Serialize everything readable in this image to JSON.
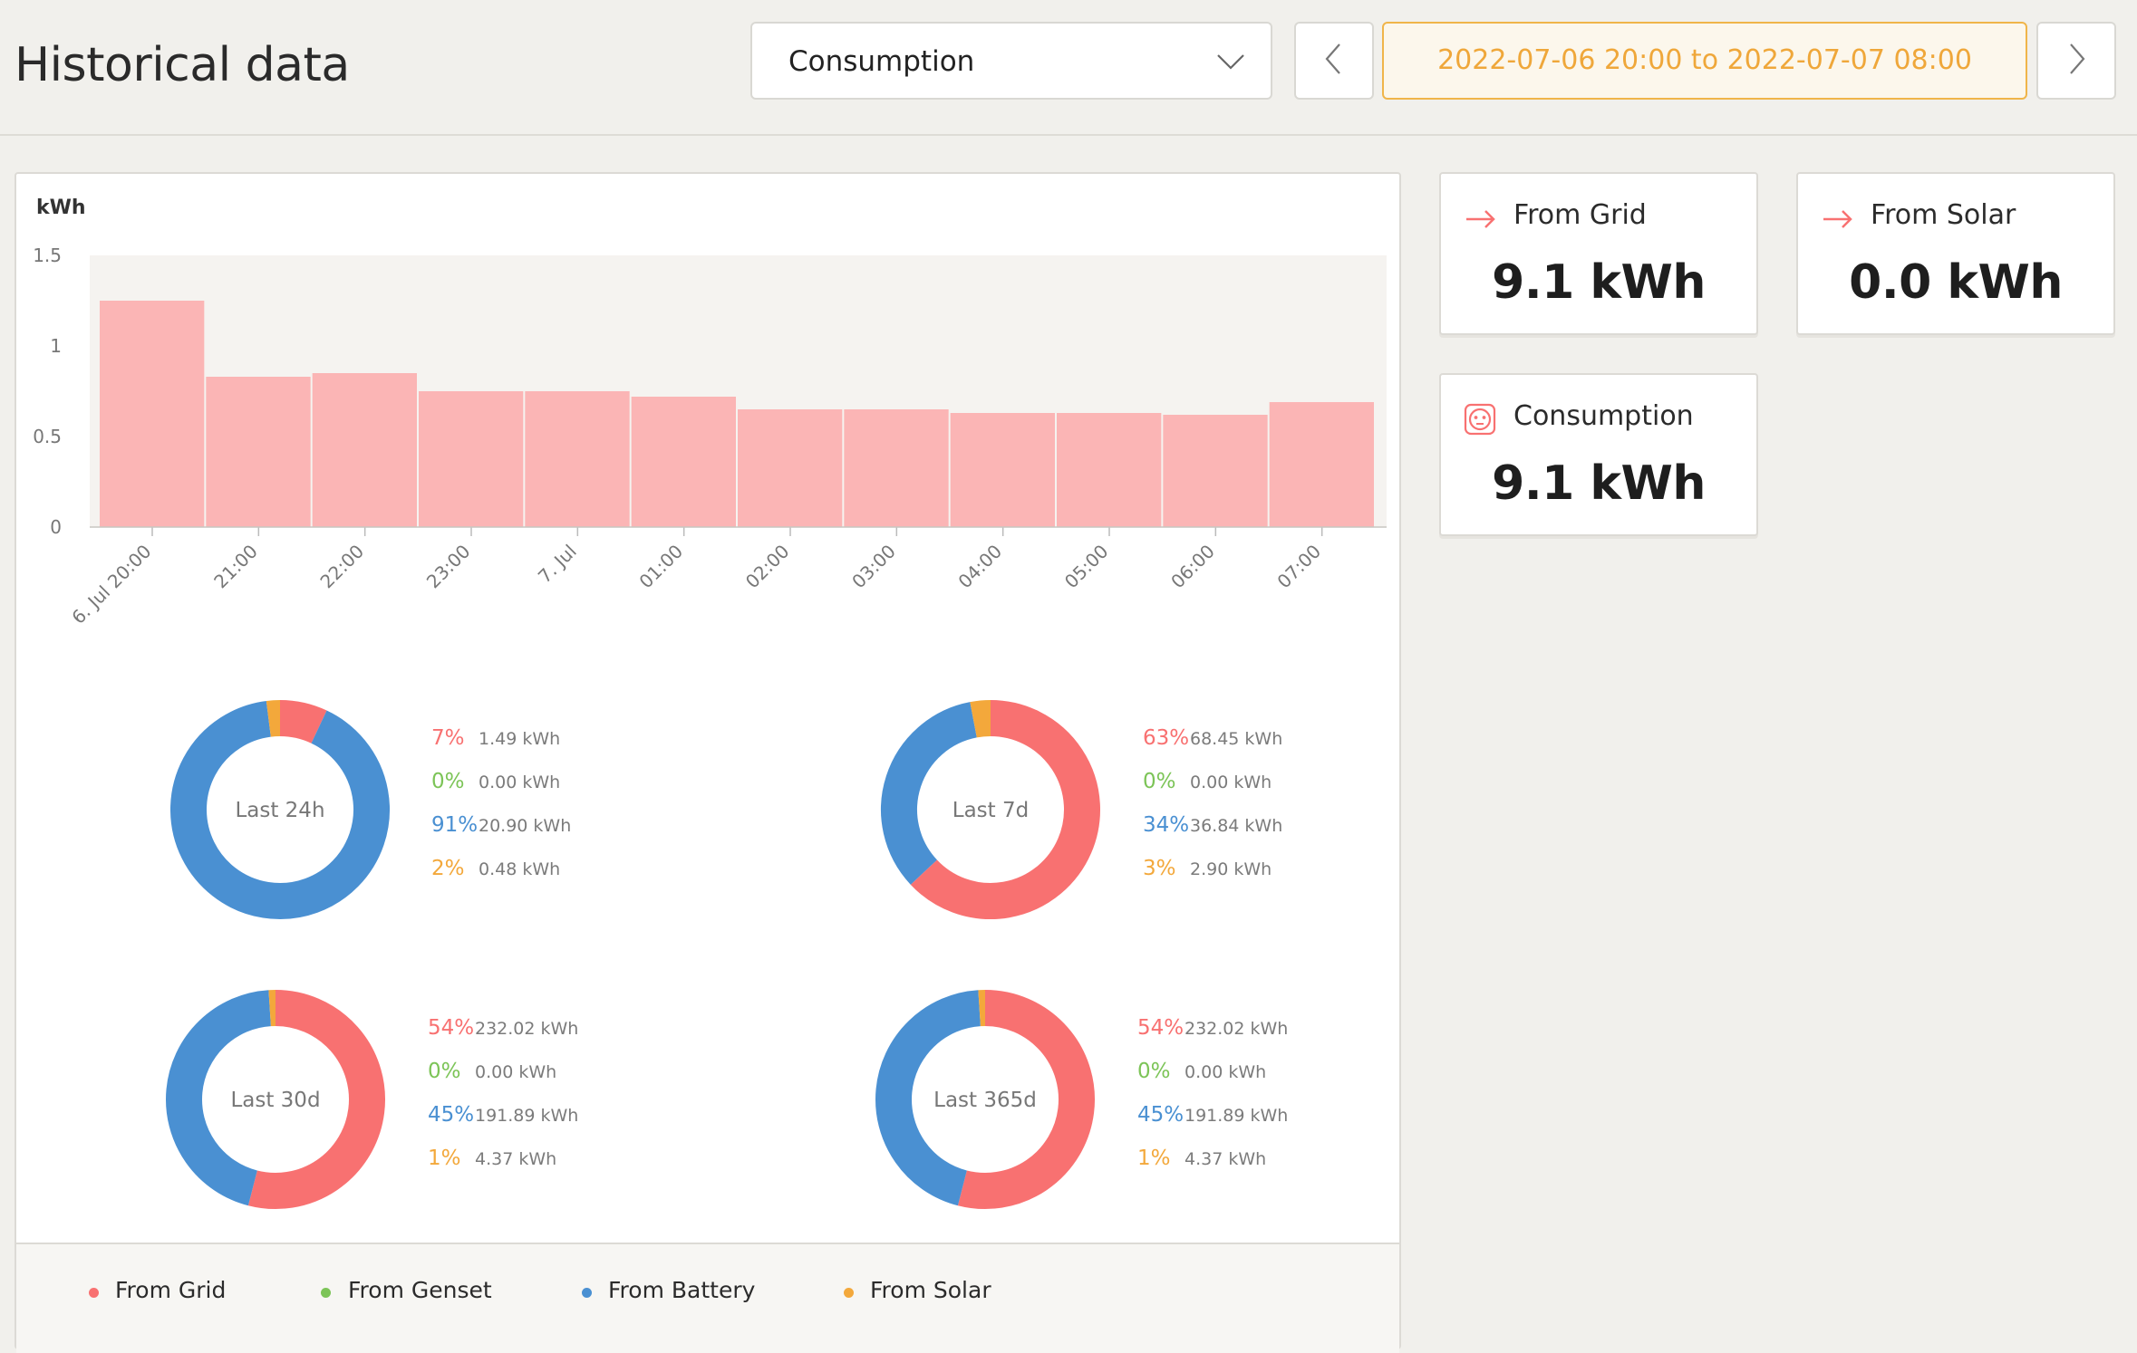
{
  "header": {
    "title": "Historical data",
    "select_value": "Consumption",
    "date_range": "2022-07-06 20:00 to 2022-07-07 08:00"
  },
  "stats": {
    "from_grid": {
      "label": "From Grid",
      "value": "9.1 kWh"
    },
    "from_solar": {
      "label": "From Solar",
      "value": "0.0 kWh"
    },
    "consumption": {
      "label": "Consumption",
      "value": "9.1 kWh"
    }
  },
  "colors": {
    "grid": "#f87171",
    "genset": "#7cc457",
    "battery": "#4a90d2",
    "solar": "#f3a83b",
    "bar": "#fbb5b5",
    "accent": "#f0b54a"
  },
  "chart_data": {
    "type": "bar",
    "ylabel": "kWh",
    "ylim": [
      0,
      1.5
    ],
    "yticks": [
      "0",
      "0.5",
      "1",
      "1.5"
    ],
    "categories": [
      "6. Jul 20:00",
      "21:00",
      "22:00",
      "23:00",
      "7. Jul",
      "01:00",
      "02:00",
      "03:00",
      "04:00",
      "05:00",
      "06:00",
      "07:00"
    ],
    "values": [
      1.25,
      0.83,
      0.85,
      0.75,
      0.75,
      0.72,
      0.65,
      0.65,
      0.63,
      0.63,
      0.62,
      0.69
    ]
  },
  "donuts": [
    {
      "label": "Last 24h",
      "rows": [
        {
          "pct": "7%",
          "kwh": "1.49 kWh",
          "value": 7
        },
        {
          "pct": "0%",
          "kwh": "0.00 kWh",
          "value": 0
        },
        {
          "pct": "91%",
          "kwh": "20.90 kWh",
          "value": 91
        },
        {
          "pct": "2%",
          "kwh": "0.48 kWh",
          "value": 2
        }
      ]
    },
    {
      "label": "Last 7d",
      "rows": [
        {
          "pct": "63%",
          "kwh": "68.45 kWh",
          "value": 63
        },
        {
          "pct": "0%",
          "kwh": "0.00 kWh",
          "value": 0
        },
        {
          "pct": "34%",
          "kwh": "36.84 kWh",
          "value": 34
        },
        {
          "pct": "3%",
          "kwh": "2.90 kWh",
          "value": 3
        }
      ]
    },
    {
      "label": "Last 30d",
      "rows": [
        {
          "pct": "54%",
          "kwh": "232.02 kWh",
          "value": 54
        },
        {
          "pct": "0%",
          "kwh": "0.00 kWh",
          "value": 0
        },
        {
          "pct": "45%",
          "kwh": "191.89 kWh",
          "value": 45
        },
        {
          "pct": "1%",
          "kwh": "4.37 kWh",
          "value": 1
        }
      ]
    },
    {
      "label": "Last 365d",
      "rows": [
        {
          "pct": "54%",
          "kwh": "232.02 kWh",
          "value": 54
        },
        {
          "pct": "0%",
          "kwh": "0.00 kWh",
          "value": 0
        },
        {
          "pct": "45%",
          "kwh": "191.89 kWh",
          "value": 45
        },
        {
          "pct": "1%",
          "kwh": "4.37 kWh",
          "value": 1
        }
      ]
    }
  ],
  "legend": [
    "From Grid",
    "From Genset",
    "From Battery",
    "From Solar"
  ]
}
